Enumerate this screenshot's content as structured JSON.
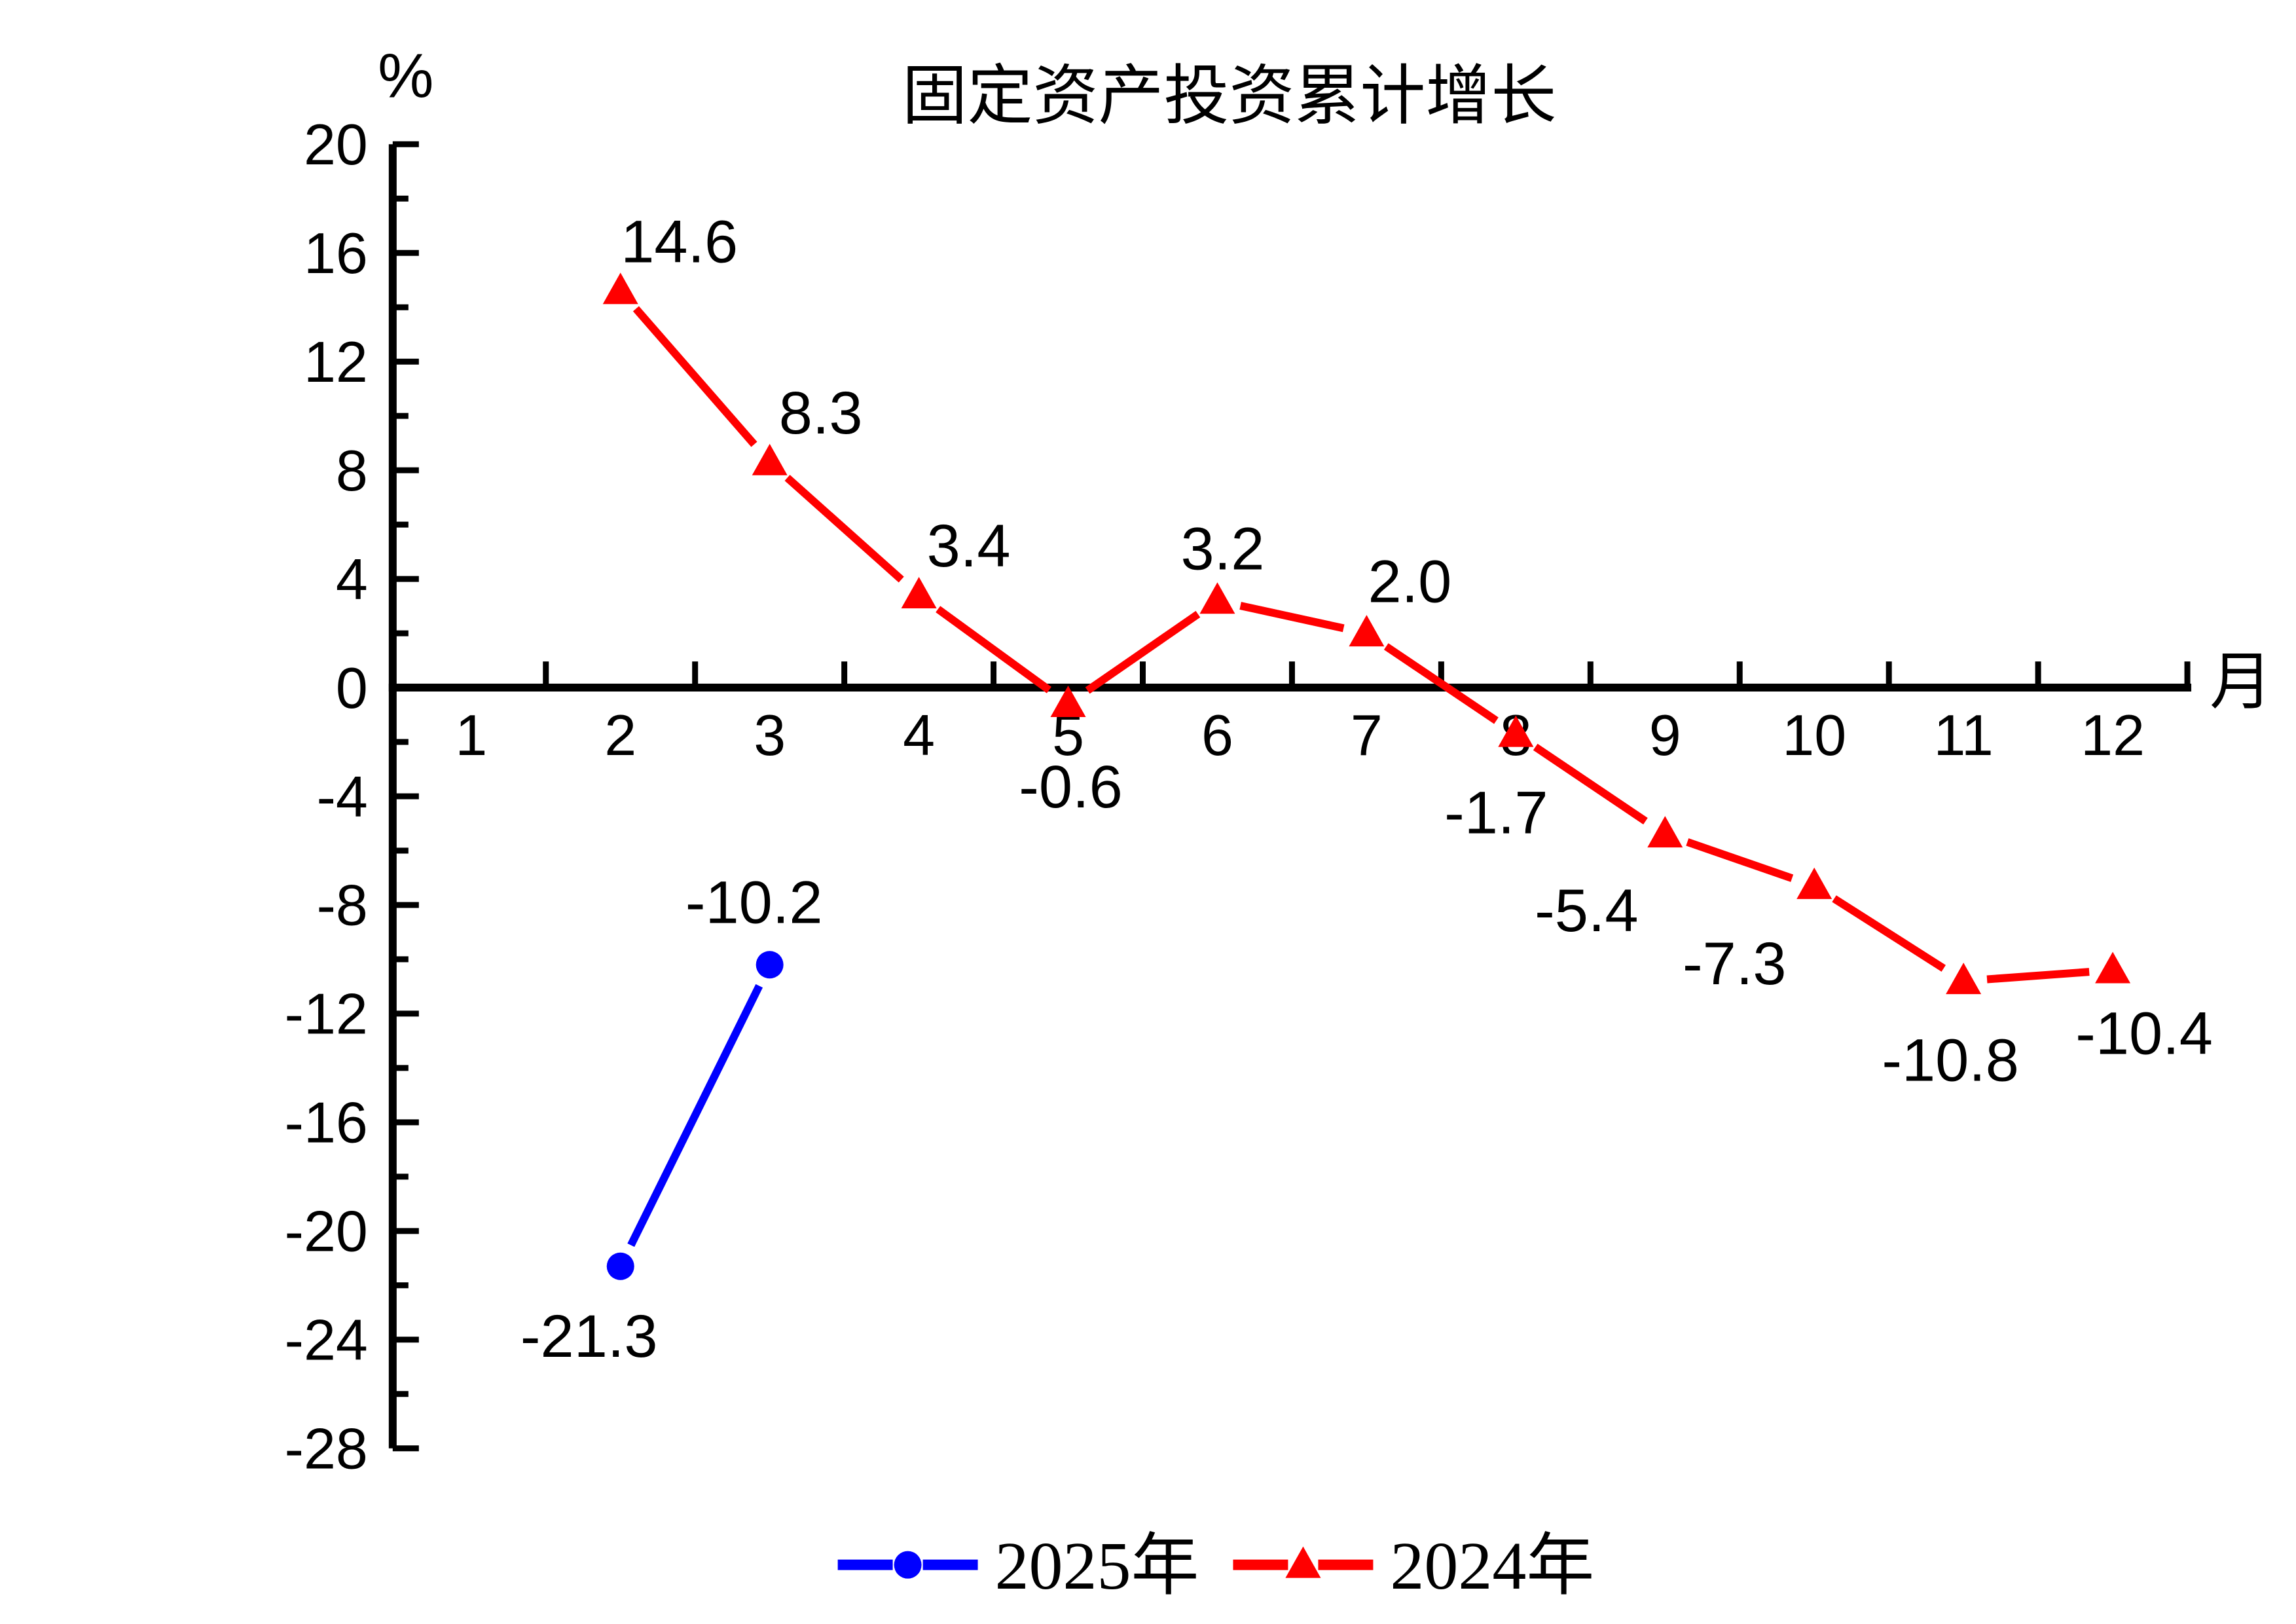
{
  "chart_data": {
    "type": "line",
    "title": "固定资产投资累计增长",
    "y_unit": "%",
    "x_unit": "月",
    "ylim": [
      -28,
      20
    ],
    "y_major_step": 4,
    "y_minor_step": 2,
    "y_ticks": [
      20,
      16,
      12,
      8,
      4,
      0,
      -4,
      -8,
      -12,
      -16,
      -20,
      -24,
      -28
    ],
    "x_ticks": [
      1,
      2,
      3,
      4,
      5,
      6,
      7,
      8,
      9,
      10,
      11,
      12
    ],
    "grid": false,
    "legend_position": "bottom-center",
    "background": "#ffffff",
    "axis_color": "#000000",
    "series": [
      {
        "name": "2025年",
        "color": "#0000ff",
        "marker": "circle",
        "x": [
          2,
          3
        ],
        "values": [
          -21.3,
          -10.2
        ],
        "labels": [
          "-21.3",
          "-10.2"
        ],
        "label_offsets": [
          [
            -24,
            53
          ],
          [
            -12,
            -48
          ]
        ]
      },
      {
        "name": "2024年",
        "color": "#ff0000",
        "marker": "triangle",
        "x": [
          2,
          3,
          4,
          5,
          6,
          7,
          8,
          9,
          10,
          11,
          12
        ],
        "values": [
          14.6,
          8.3,
          3.4,
          -0.6,
          3.2,
          2.0,
          -1.7,
          -5.4,
          -7.3,
          -10.8,
          -10.4
        ],
        "labels": [
          "14.6",
          "8.3",
          "3.4",
          "-0.6",
          "3.2",
          "2.0",
          "-1.7",
          "-5.4",
          "-7.3",
          "-10.8",
          "-10.4"
        ],
        "label_offsets": [
          [
            45,
            -38
          ],
          [
            39,
            -38
          ],
          [
            38,
            -38
          ],
          [
            2,
            63
          ],
          [
            4,
            -40
          ],
          [
            33,
            -40
          ],
          [
            -15,
            60
          ],
          [
            -60,
            58
          ],
          [
            -61,
            59
          ],
          [
            -10,
            60
          ],
          [
            24,
            48
          ]
        ]
      }
    ]
  }
}
